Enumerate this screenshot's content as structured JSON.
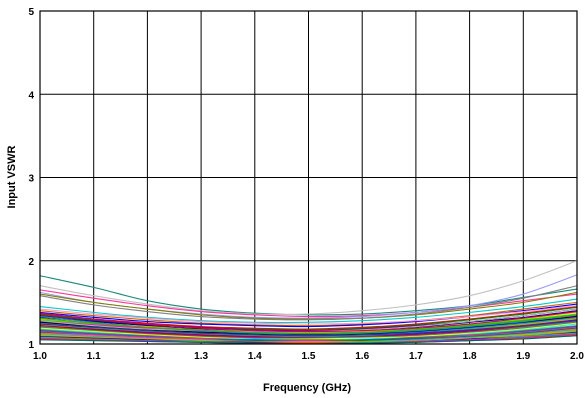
{
  "chart_data": {
    "type": "line",
    "title": "",
    "xlabel": "Frequency (GHz)",
    "ylabel": "Input VSWR",
    "xlim": [
      1.0,
      2.0
    ],
    "ylim": [
      1,
      5
    ],
    "x_ticks": [
      "1.0",
      "1.1",
      "1.2",
      "1.3",
      "1.4",
      "1.5",
      "1.6",
      "1.7",
      "1.8",
      "1.9",
      "2.0"
    ],
    "y_ticks": [
      "1",
      "2",
      "3",
      "4",
      "5"
    ],
    "grid": true,
    "legend": "none",
    "x": [
      1.0,
      1.1,
      1.2,
      1.3,
      1.4,
      1.5,
      1.6,
      1.7,
      1.8,
      1.9,
      2.0
    ],
    "series": [
      {
        "color": "#1a8a7a",
        "values": [
          1.82,
          1.68,
          1.52,
          1.42,
          1.37,
          1.35,
          1.36,
          1.4,
          1.46,
          1.56,
          1.66
        ]
      },
      {
        "color": "#c0c0c0",
        "values": [
          1.7,
          1.58,
          1.48,
          1.4,
          1.36,
          1.36,
          1.4,
          1.47,
          1.58,
          1.76,
          2.0
        ]
      },
      {
        "color": "#ff3399",
        "values": [
          1.65,
          1.55,
          1.46,
          1.39,
          1.35,
          1.33,
          1.34,
          1.38,
          1.44,
          1.52,
          1.6
        ]
      },
      {
        "color": "#9999ff",
        "values": [
          1.62,
          1.5,
          1.42,
          1.36,
          1.32,
          1.31,
          1.33,
          1.38,
          1.46,
          1.6,
          1.83
        ]
      },
      {
        "color": "#808000",
        "values": [
          1.6,
          1.5,
          1.42,
          1.35,
          1.31,
          1.3,
          1.31,
          1.35,
          1.42,
          1.5,
          1.62
        ]
      },
      {
        "color": "#808080",
        "values": [
          1.58,
          1.47,
          1.39,
          1.33,
          1.3,
          1.29,
          1.31,
          1.36,
          1.44,
          1.55,
          1.7
        ]
      },
      {
        "color": "#00cccc",
        "values": [
          1.45,
          1.38,
          1.32,
          1.28,
          1.26,
          1.26,
          1.28,
          1.32,
          1.38,
          1.45,
          1.54
        ]
      },
      {
        "color": "#cc6600",
        "values": [
          1.4,
          1.34,
          1.29,
          1.25,
          1.23,
          1.22,
          1.24,
          1.28,
          1.34,
          1.42,
          1.5
        ]
      },
      {
        "color": "#0000ff",
        "values": [
          1.38,
          1.32,
          1.27,
          1.24,
          1.22,
          1.21,
          1.23,
          1.27,
          1.33,
          1.4,
          1.48
        ]
      },
      {
        "color": "#ff0000",
        "values": [
          1.36,
          1.3,
          1.25,
          1.21,
          1.19,
          1.18,
          1.2,
          1.24,
          1.3,
          1.37,
          1.45
        ]
      },
      {
        "color": "#008000",
        "values": [
          1.35,
          1.29,
          1.24,
          1.2,
          1.18,
          1.17,
          1.19,
          1.23,
          1.29,
          1.36,
          1.44
        ]
      },
      {
        "color": "#800080",
        "values": [
          1.34,
          1.28,
          1.23,
          1.2,
          1.17,
          1.16,
          1.18,
          1.22,
          1.27,
          1.34,
          1.42
        ]
      },
      {
        "color": "#000080",
        "values": [
          1.32,
          1.27,
          1.22,
          1.18,
          1.16,
          1.15,
          1.17,
          1.2,
          1.26,
          1.32,
          1.4
        ]
      },
      {
        "color": "#ffcc00",
        "values": [
          1.3,
          1.25,
          1.21,
          1.17,
          1.15,
          1.14,
          1.15,
          1.19,
          1.24,
          1.3,
          1.38
        ]
      },
      {
        "color": "#00ff00",
        "values": [
          1.29,
          1.24,
          1.2,
          1.16,
          1.14,
          1.13,
          1.14,
          1.18,
          1.23,
          1.29,
          1.36
        ]
      },
      {
        "color": "#ff00ff",
        "values": [
          1.28,
          1.23,
          1.19,
          1.15,
          1.13,
          1.12,
          1.13,
          1.16,
          1.21,
          1.27,
          1.34
        ]
      },
      {
        "color": "#993300",
        "values": [
          1.27,
          1.22,
          1.18,
          1.14,
          1.12,
          1.11,
          1.12,
          1.15,
          1.2,
          1.26,
          1.33
        ]
      },
      {
        "color": "#000000",
        "values": [
          1.26,
          1.21,
          1.17,
          1.14,
          1.12,
          1.11,
          1.12,
          1.15,
          1.2,
          1.26,
          1.33
        ]
      },
      {
        "color": "#3366ff",
        "values": [
          1.25,
          1.2,
          1.16,
          1.13,
          1.11,
          1.1,
          1.11,
          1.14,
          1.19,
          1.25,
          1.32
        ]
      },
      {
        "color": "#33cc33",
        "values": [
          1.24,
          1.19,
          1.15,
          1.12,
          1.1,
          1.09,
          1.1,
          1.13,
          1.18,
          1.24,
          1.31
        ]
      },
      {
        "color": "#ff9900",
        "values": [
          1.23,
          1.18,
          1.14,
          1.11,
          1.09,
          1.08,
          1.09,
          1.12,
          1.17,
          1.23,
          1.3
        ]
      },
      {
        "color": "#6600cc",
        "values": [
          1.22,
          1.18,
          1.14,
          1.11,
          1.09,
          1.08,
          1.09,
          1.12,
          1.16,
          1.22,
          1.29
        ]
      },
      {
        "color": "#cc0000",
        "values": [
          1.22,
          1.17,
          1.13,
          1.1,
          1.08,
          1.07,
          1.08,
          1.11,
          1.15,
          1.21,
          1.28
        ]
      },
      {
        "color": "#339966",
        "values": [
          1.21,
          1.16,
          1.12,
          1.09,
          1.07,
          1.07,
          1.08,
          1.1,
          1.14,
          1.2,
          1.27
        ]
      },
      {
        "color": "#666699",
        "values": [
          1.2,
          1.15,
          1.12,
          1.09,
          1.07,
          1.06,
          1.07,
          1.1,
          1.14,
          1.19,
          1.26
        ]
      },
      {
        "color": "#ffff00",
        "values": [
          1.19,
          1.15,
          1.11,
          1.08,
          1.06,
          1.06,
          1.07,
          1.09,
          1.13,
          1.18,
          1.25
        ]
      },
      {
        "color": "#00ffff",
        "values": [
          1.18,
          1.14,
          1.1,
          1.07,
          1.06,
          1.05,
          1.06,
          1.08,
          1.12,
          1.17,
          1.24
        ]
      },
      {
        "color": "#996633",
        "values": [
          1.17,
          1.13,
          1.1,
          1.07,
          1.05,
          1.05,
          1.05,
          1.08,
          1.11,
          1.16,
          1.22
        ]
      },
      {
        "color": "#0066cc",
        "values": [
          1.16,
          1.12,
          1.09,
          1.06,
          1.05,
          1.04,
          1.05,
          1.07,
          1.1,
          1.15,
          1.21
        ]
      },
      {
        "color": "#cc33cc",
        "values": [
          1.15,
          1.11,
          1.08,
          1.06,
          1.04,
          1.04,
          1.04,
          1.06,
          1.1,
          1.14,
          1.2
        ]
      },
      {
        "color": "#336600",
        "values": [
          1.14,
          1.1,
          1.07,
          1.05,
          1.04,
          1.03,
          1.04,
          1.06,
          1.09,
          1.13,
          1.19
        ]
      },
      {
        "color": "#ff6666",
        "values": [
          1.13,
          1.1,
          1.07,
          1.05,
          1.03,
          1.03,
          1.03,
          1.05,
          1.08,
          1.12,
          1.18
        ]
      },
      {
        "color": "#3399ff",
        "values": [
          1.12,
          1.09,
          1.06,
          1.04,
          1.03,
          1.02,
          1.03,
          1.05,
          1.08,
          1.12,
          1.17
        ]
      },
      {
        "color": "#99cc00",
        "values": [
          1.11,
          1.08,
          1.06,
          1.04,
          1.02,
          1.02,
          1.03,
          1.04,
          1.07,
          1.11,
          1.16
        ]
      },
      {
        "color": "#cc9900",
        "values": [
          1.1,
          1.07,
          1.05,
          1.03,
          1.02,
          1.02,
          1.02,
          1.04,
          1.06,
          1.1,
          1.15
        ]
      },
      {
        "color": "#660066",
        "values": [
          1.09,
          1.07,
          1.05,
          1.03,
          1.02,
          1.01,
          1.02,
          1.03,
          1.06,
          1.09,
          1.14
        ]
      },
      {
        "color": "#00cc99",
        "values": [
          1.08,
          1.06,
          1.04,
          1.03,
          1.01,
          1.01,
          1.02,
          1.03,
          1.05,
          1.09,
          1.13
        ]
      },
      {
        "color": "#9933ff",
        "values": [
          1.07,
          1.05,
          1.04,
          1.02,
          1.01,
          1.01,
          1.01,
          1.03,
          1.05,
          1.08,
          1.12
        ]
      },
      {
        "color": "#ff3300",
        "values": [
          1.06,
          1.05,
          1.03,
          1.02,
          1.01,
          1.01,
          1.01,
          1.02,
          1.04,
          1.07,
          1.11
        ]
      },
      {
        "color": "#006666",
        "values": [
          1.05,
          1.04,
          1.03,
          1.02,
          1.01,
          1.0,
          1.01,
          1.02,
          1.04,
          1.06,
          1.1
        ]
      },
      {
        "color": "#b0b0b0",
        "values": [
          1.28,
          1.22,
          1.18,
          1.16,
          1.15,
          1.15,
          1.17,
          1.21,
          1.27,
          1.34,
          1.42
        ]
      },
      {
        "color": "#0099cc",
        "values": [
          1.33,
          1.26,
          1.2,
          1.16,
          1.13,
          1.12,
          1.13,
          1.16,
          1.21,
          1.27,
          1.35
        ]
      },
      {
        "color": "#cc0066",
        "values": [
          1.37,
          1.3,
          1.24,
          1.19,
          1.16,
          1.15,
          1.16,
          1.19,
          1.24,
          1.31,
          1.39
        ]
      },
      {
        "color": "#669900",
        "values": [
          1.31,
          1.25,
          1.2,
          1.17,
          1.14,
          1.13,
          1.14,
          1.17,
          1.22,
          1.28,
          1.35
        ]
      },
      {
        "color": "#ff99cc",
        "values": [
          1.42,
          1.36,
          1.31,
          1.27,
          1.25,
          1.24,
          1.25,
          1.28,
          1.33,
          1.39,
          1.46
        ]
      },
      {
        "color": "#333399",
        "values": [
          1.24,
          1.2,
          1.16,
          1.13,
          1.11,
          1.1,
          1.11,
          1.13,
          1.17,
          1.22,
          1.28
        ]
      }
    ]
  }
}
